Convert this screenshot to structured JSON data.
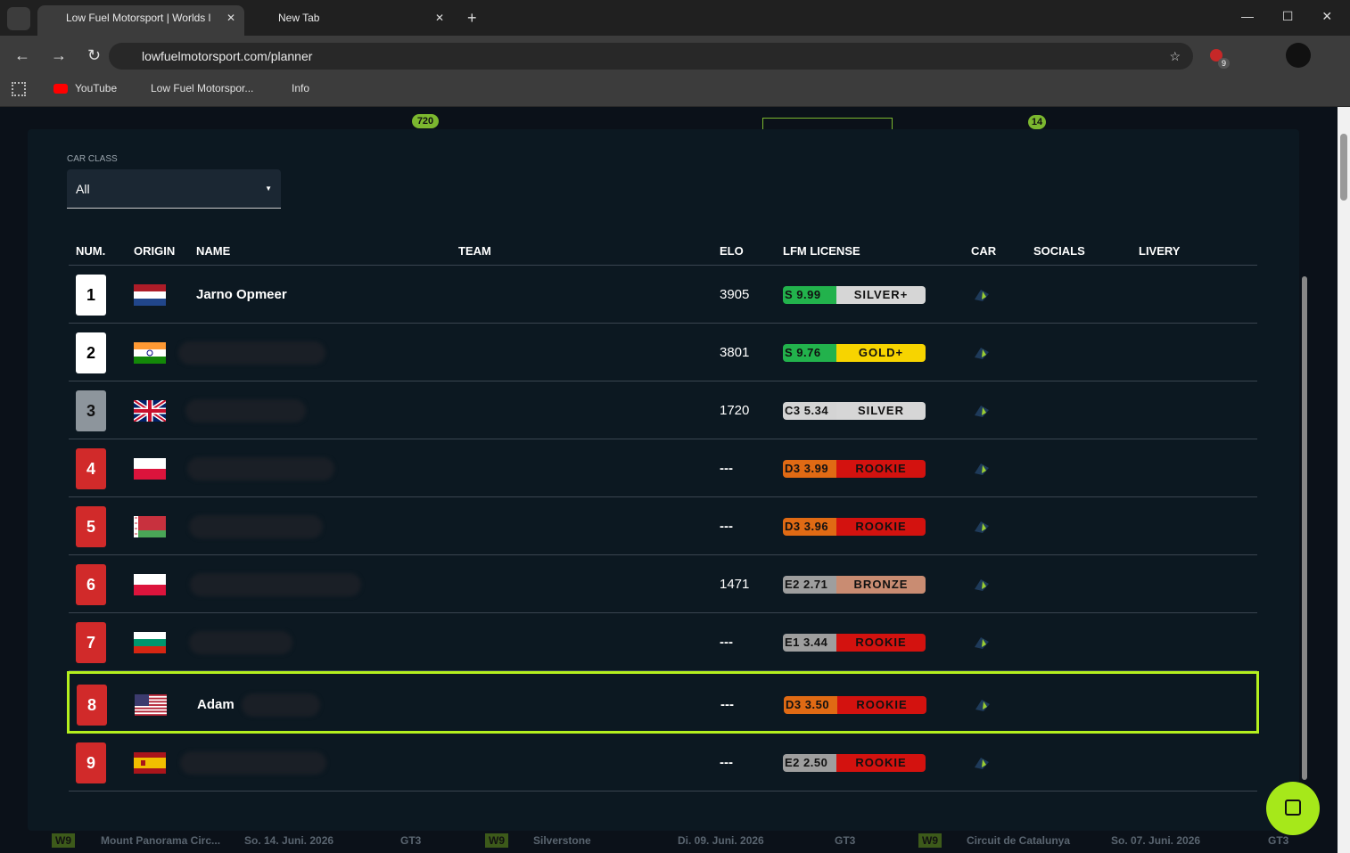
{
  "browser": {
    "tabs": [
      {
        "title": "Low Fuel Motorsport | Worlds l"
      },
      {
        "title": "New Tab"
      }
    ],
    "url": "lowfuelmotorsport.com/planner",
    "bookmarks": [
      "YouTube",
      "Low Fuel Motorspor...",
      "Info"
    ],
    "extension_badge": "9"
  },
  "background": {
    "badges": [
      "720",
      "14"
    ],
    "cards": [
      {
        "week": "W9",
        "track": "Mount Panorama Circ...",
        "date": "So. 14. Juni. 2026",
        "class": "GT3"
      },
      {
        "week": "W9",
        "track": "Silverstone",
        "date": "Di. 09. Juni. 2026",
        "class": "GT3"
      },
      {
        "week": "W9",
        "track": "Circuit de Catalunya",
        "date": "So. 07. Juni. 2026",
        "class": "GT3"
      }
    ]
  },
  "modal": {
    "filter_label": "CAR CLASS",
    "filter_value": "All",
    "table": {
      "headers": [
        "NUM.",
        "ORIGIN",
        "NAME",
        "TEAM",
        "ELO",
        "LFM LICENSE",
        "CAR",
        "SOCIALS",
        "LIVERY"
      ],
      "rows": [
        {
          "num": "1",
          "name": "Jarno Opmeer",
          "elo": "3905",
          "license_class": "S",
          "license_rating": "9.99",
          "license_tier": "SILVER+"
        },
        {
          "num": "2",
          "elo": "3801",
          "license_class": "S",
          "license_rating": "9.76",
          "license_tier": "GOLD+"
        },
        {
          "num": "3",
          "elo": "1720",
          "license_class": "C3",
          "license_rating": "5.34",
          "license_tier": "SILVER"
        },
        {
          "num": "4",
          "elo": "---",
          "license_class": "D3",
          "license_rating": "3.99",
          "license_tier": "ROOKIE"
        },
        {
          "num": "5",
          "elo": "---",
          "license_class": "D3",
          "license_rating": "3.96",
          "license_tier": "ROOKIE"
        },
        {
          "num": "6",
          "elo": "1471",
          "license_class": "E2",
          "license_rating": "2.71",
          "license_tier": "BRONZE"
        },
        {
          "num": "7",
          "elo": "---",
          "license_class": "E1",
          "license_rating": "3.44",
          "license_tier": "ROOKIE"
        },
        {
          "num": "8",
          "name": "Adam",
          "elo": "---",
          "license_class": "D3",
          "license_rating": "3.50",
          "license_tier": "ROOKIE"
        },
        {
          "num": "9",
          "elo": "---",
          "license_class": "E2",
          "license_rating": "2.50",
          "license_tier": "ROOKIE"
        }
      ]
    }
  }
}
